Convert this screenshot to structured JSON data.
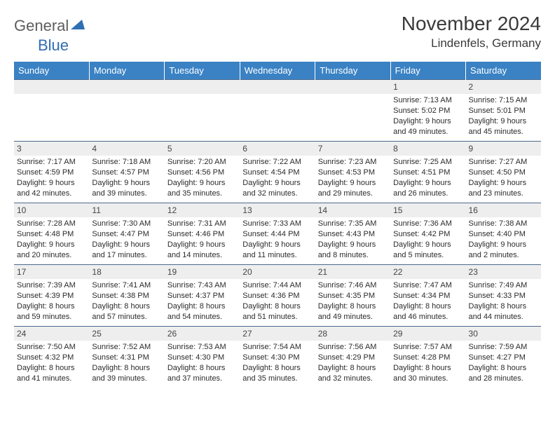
{
  "logo": {
    "text1": "General",
    "text2": "Blue"
  },
  "title": "November 2024",
  "location": "Lindenfels, Germany",
  "colors": {
    "header_bg": "#3a82c4",
    "header_fg": "#ffffff",
    "daynum_bg": "#eeeeee",
    "rule": "#4a6a8e",
    "logo_gray": "#5e5e5e",
    "logo_blue": "#2f6fb3"
  },
  "dow": [
    "Sunday",
    "Monday",
    "Tuesday",
    "Wednesday",
    "Thursday",
    "Friday",
    "Saturday"
  ],
  "weeks": [
    [
      null,
      null,
      null,
      null,
      null,
      {
        "n": "1",
        "sr": "Sunrise: 7:13 AM",
        "ss": "Sunset: 5:02 PM",
        "d1": "Daylight: 9 hours",
        "d2": "and 49 minutes."
      },
      {
        "n": "2",
        "sr": "Sunrise: 7:15 AM",
        "ss": "Sunset: 5:01 PM",
        "d1": "Daylight: 9 hours",
        "d2": "and 45 minutes."
      }
    ],
    [
      {
        "n": "3",
        "sr": "Sunrise: 7:17 AM",
        "ss": "Sunset: 4:59 PM",
        "d1": "Daylight: 9 hours",
        "d2": "and 42 minutes."
      },
      {
        "n": "4",
        "sr": "Sunrise: 7:18 AM",
        "ss": "Sunset: 4:57 PM",
        "d1": "Daylight: 9 hours",
        "d2": "and 39 minutes."
      },
      {
        "n": "5",
        "sr": "Sunrise: 7:20 AM",
        "ss": "Sunset: 4:56 PM",
        "d1": "Daylight: 9 hours",
        "d2": "and 35 minutes."
      },
      {
        "n": "6",
        "sr": "Sunrise: 7:22 AM",
        "ss": "Sunset: 4:54 PM",
        "d1": "Daylight: 9 hours",
        "d2": "and 32 minutes."
      },
      {
        "n": "7",
        "sr": "Sunrise: 7:23 AM",
        "ss": "Sunset: 4:53 PM",
        "d1": "Daylight: 9 hours",
        "d2": "and 29 minutes."
      },
      {
        "n": "8",
        "sr": "Sunrise: 7:25 AM",
        "ss": "Sunset: 4:51 PM",
        "d1": "Daylight: 9 hours",
        "d2": "and 26 minutes."
      },
      {
        "n": "9",
        "sr": "Sunrise: 7:27 AM",
        "ss": "Sunset: 4:50 PM",
        "d1": "Daylight: 9 hours",
        "d2": "and 23 minutes."
      }
    ],
    [
      {
        "n": "10",
        "sr": "Sunrise: 7:28 AM",
        "ss": "Sunset: 4:48 PM",
        "d1": "Daylight: 9 hours",
        "d2": "and 20 minutes."
      },
      {
        "n": "11",
        "sr": "Sunrise: 7:30 AM",
        "ss": "Sunset: 4:47 PM",
        "d1": "Daylight: 9 hours",
        "d2": "and 17 minutes."
      },
      {
        "n": "12",
        "sr": "Sunrise: 7:31 AM",
        "ss": "Sunset: 4:46 PM",
        "d1": "Daylight: 9 hours",
        "d2": "and 14 minutes."
      },
      {
        "n": "13",
        "sr": "Sunrise: 7:33 AM",
        "ss": "Sunset: 4:44 PM",
        "d1": "Daylight: 9 hours",
        "d2": "and 11 minutes."
      },
      {
        "n": "14",
        "sr": "Sunrise: 7:35 AM",
        "ss": "Sunset: 4:43 PM",
        "d1": "Daylight: 9 hours",
        "d2": "and 8 minutes."
      },
      {
        "n": "15",
        "sr": "Sunrise: 7:36 AM",
        "ss": "Sunset: 4:42 PM",
        "d1": "Daylight: 9 hours",
        "d2": "and 5 minutes."
      },
      {
        "n": "16",
        "sr": "Sunrise: 7:38 AM",
        "ss": "Sunset: 4:40 PM",
        "d1": "Daylight: 9 hours",
        "d2": "and 2 minutes."
      }
    ],
    [
      {
        "n": "17",
        "sr": "Sunrise: 7:39 AM",
        "ss": "Sunset: 4:39 PM",
        "d1": "Daylight: 8 hours",
        "d2": "and 59 minutes."
      },
      {
        "n": "18",
        "sr": "Sunrise: 7:41 AM",
        "ss": "Sunset: 4:38 PM",
        "d1": "Daylight: 8 hours",
        "d2": "and 57 minutes."
      },
      {
        "n": "19",
        "sr": "Sunrise: 7:43 AM",
        "ss": "Sunset: 4:37 PM",
        "d1": "Daylight: 8 hours",
        "d2": "and 54 minutes."
      },
      {
        "n": "20",
        "sr": "Sunrise: 7:44 AM",
        "ss": "Sunset: 4:36 PM",
        "d1": "Daylight: 8 hours",
        "d2": "and 51 minutes."
      },
      {
        "n": "21",
        "sr": "Sunrise: 7:46 AM",
        "ss": "Sunset: 4:35 PM",
        "d1": "Daylight: 8 hours",
        "d2": "and 49 minutes."
      },
      {
        "n": "22",
        "sr": "Sunrise: 7:47 AM",
        "ss": "Sunset: 4:34 PM",
        "d1": "Daylight: 8 hours",
        "d2": "and 46 minutes."
      },
      {
        "n": "23",
        "sr": "Sunrise: 7:49 AM",
        "ss": "Sunset: 4:33 PM",
        "d1": "Daylight: 8 hours",
        "d2": "and 44 minutes."
      }
    ],
    [
      {
        "n": "24",
        "sr": "Sunrise: 7:50 AM",
        "ss": "Sunset: 4:32 PM",
        "d1": "Daylight: 8 hours",
        "d2": "and 41 minutes."
      },
      {
        "n": "25",
        "sr": "Sunrise: 7:52 AM",
        "ss": "Sunset: 4:31 PM",
        "d1": "Daylight: 8 hours",
        "d2": "and 39 minutes."
      },
      {
        "n": "26",
        "sr": "Sunrise: 7:53 AM",
        "ss": "Sunset: 4:30 PM",
        "d1": "Daylight: 8 hours",
        "d2": "and 37 minutes."
      },
      {
        "n": "27",
        "sr": "Sunrise: 7:54 AM",
        "ss": "Sunset: 4:30 PM",
        "d1": "Daylight: 8 hours",
        "d2": "and 35 minutes."
      },
      {
        "n": "28",
        "sr": "Sunrise: 7:56 AM",
        "ss": "Sunset: 4:29 PM",
        "d1": "Daylight: 8 hours",
        "d2": "and 32 minutes."
      },
      {
        "n": "29",
        "sr": "Sunrise: 7:57 AM",
        "ss": "Sunset: 4:28 PM",
        "d1": "Daylight: 8 hours",
        "d2": "and 30 minutes."
      },
      {
        "n": "30",
        "sr": "Sunrise: 7:59 AM",
        "ss": "Sunset: 4:27 PM",
        "d1": "Daylight: 8 hours",
        "d2": "and 28 minutes."
      }
    ]
  ]
}
